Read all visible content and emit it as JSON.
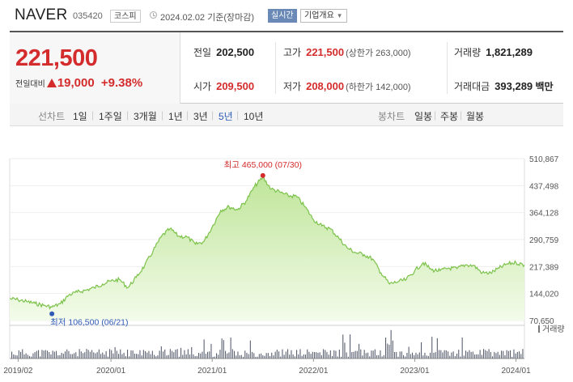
{
  "stock": {
    "name": "NAVER",
    "code": "035420",
    "market": "코스피",
    "date_text": "2024.02.02 기준(장마감)",
    "live_label": "실시간",
    "company_info_label": "기업개요"
  },
  "price": {
    "current": "221,500",
    "change_label": "전일대비",
    "change": "19,000",
    "change_pct": "+9.38%"
  },
  "quote": {
    "prev_close": {
      "label": "전일",
      "value": "202,500"
    },
    "high": {
      "label": "고가",
      "value": "221,500",
      "sub": "(상한가 263,000)"
    },
    "volume": {
      "label": "거래량",
      "value": "1,821,289"
    },
    "open": {
      "label": "시가",
      "value": "209,500"
    },
    "low": {
      "label": "저가",
      "value": "208,000",
      "sub": "(하한가 142,000)"
    },
    "amount": {
      "label": "거래대금",
      "value": "393,289",
      "unit": "백만"
    }
  },
  "toolbar": {
    "line_chart_label": "선차트",
    "periods": [
      "1일",
      "1주일",
      "3개월",
      "1년",
      "3년",
      "5년",
      "10년"
    ],
    "selected_period": "5년",
    "candle_label": "봉차트",
    "candle_periods": [
      "일봉",
      "주봉",
      "월봉"
    ]
  },
  "colors": {
    "up": "#d42c2c",
    "line": "#7cc24a",
    "fill_top": "#bfe59a",
    "fill_bottom": "#f3fbea",
    "low_marker": "#2f5bb7",
    "volume_bar": "#5b6070"
  },
  "chart_data": {
    "type": "area",
    "y_ticks": [
      "510,867",
      "437,498",
      "364,128",
      "290,759",
      "217,389",
      "144,020",
      "70,650"
    ],
    "y_min": 70650,
    "y_max": 510867,
    "x_start": "2019-01",
    "x_end": "2024-02",
    "x_ticks": [
      {
        "label": "2019/02",
        "date": "2019-02"
      },
      {
        "label": "2020/01",
        "date": "2020-01"
      },
      {
        "label": "2021/01",
        "date": "2021-01"
      },
      {
        "label": "2022/01",
        "date": "2022-01"
      },
      {
        "label": "2023/01",
        "date": "2023-01"
      },
      {
        "label": "2024/01",
        "date": "2024-01"
      }
    ],
    "max_label": "최고 465,000 (07/30)",
    "max_point": {
      "date": "2021-07",
      "value": 465000
    },
    "min_label": "최저 106,500 (06/21)",
    "min_point": {
      "date": "2019-06",
      "value": 106500
    },
    "volume_label": "거래량",
    "series": [
      {
        "values": [
          {
            "date": "2019-01",
            "value": 130000
          },
          {
            "date": "2019-02",
            "value": 127000
          },
          {
            "date": "2019-03",
            "value": 122000
          },
          {
            "date": "2019-04",
            "value": 117000
          },
          {
            "date": "2019-05",
            "value": 112000
          },
          {
            "date": "2019-06",
            "value": 107000
          },
          {
            "date": "2019-07",
            "value": 116000
          },
          {
            "date": "2019-08",
            "value": 140000
          },
          {
            "date": "2019-09",
            "value": 148000
          },
          {
            "date": "2019-10",
            "value": 153000
          },
          {
            "date": "2019-11",
            "value": 160000
          },
          {
            "date": "2019-12",
            "value": 170000
          },
          {
            "date": "2020-01",
            "value": 178000
          },
          {
            "date": "2020-02",
            "value": 182000
          },
          {
            "date": "2020-03",
            "value": 160000
          },
          {
            "date": "2020-04",
            "value": 188000
          },
          {
            "date": "2020-05",
            "value": 220000
          },
          {
            "date": "2020-06",
            "value": 260000
          },
          {
            "date": "2020-07",
            "value": 300000
          },
          {
            "date": "2020-08",
            "value": 320000
          },
          {
            "date": "2020-09",
            "value": 300000
          },
          {
            "date": "2020-10",
            "value": 298000
          },
          {
            "date": "2020-11",
            "value": 278000
          },
          {
            "date": "2020-12",
            "value": 285000
          },
          {
            "date": "2021-01",
            "value": 325000
          },
          {
            "date": "2021-02",
            "value": 370000
          },
          {
            "date": "2021-03",
            "value": 380000
          },
          {
            "date": "2021-04",
            "value": 372000
          },
          {
            "date": "2021-05",
            "value": 395000
          },
          {
            "date": "2021-06",
            "value": 435000
          },
          {
            "date": "2021-07",
            "value": 460000
          },
          {
            "date": "2021-08",
            "value": 428000
          },
          {
            "date": "2021-09",
            "value": 420000
          },
          {
            "date": "2021-10",
            "value": 410000
          },
          {
            "date": "2021-11",
            "value": 408000
          },
          {
            "date": "2021-12",
            "value": 380000
          },
          {
            "date": "2022-01",
            "value": 345000
          },
          {
            "date": "2022-02",
            "value": 328000
          },
          {
            "date": "2022-03",
            "value": 320000
          },
          {
            "date": "2022-04",
            "value": 295000
          },
          {
            "date": "2022-05",
            "value": 268000
          },
          {
            "date": "2022-06",
            "value": 255000
          },
          {
            "date": "2022-07",
            "value": 250000
          },
          {
            "date": "2022-08",
            "value": 238000
          },
          {
            "date": "2022-09",
            "value": 200000
          },
          {
            "date": "2022-10",
            "value": 170000
          },
          {
            "date": "2022-11",
            "value": 176000
          },
          {
            "date": "2022-12",
            "value": 182000
          },
          {
            "date": "2023-01",
            "value": 206000
          },
          {
            "date": "2023-02",
            "value": 228000
          },
          {
            "date": "2023-03",
            "value": 208000
          },
          {
            "date": "2023-04",
            "value": 206000
          },
          {
            "date": "2023-05",
            "value": 213000
          },
          {
            "date": "2023-06",
            "value": 212000
          },
          {
            "date": "2023-07",
            "value": 222000
          },
          {
            "date": "2023-08",
            "value": 220000
          },
          {
            "date": "2023-09",
            "value": 200000
          },
          {
            "date": "2023-10",
            "value": 200000
          },
          {
            "date": "2023-11",
            "value": 213000
          },
          {
            "date": "2023-12",
            "value": 225000
          },
          {
            "date": "2024-01",
            "value": 228000
          },
          {
            "date": "2024-02",
            "value": 221500
          }
        ]
      }
    ]
  }
}
